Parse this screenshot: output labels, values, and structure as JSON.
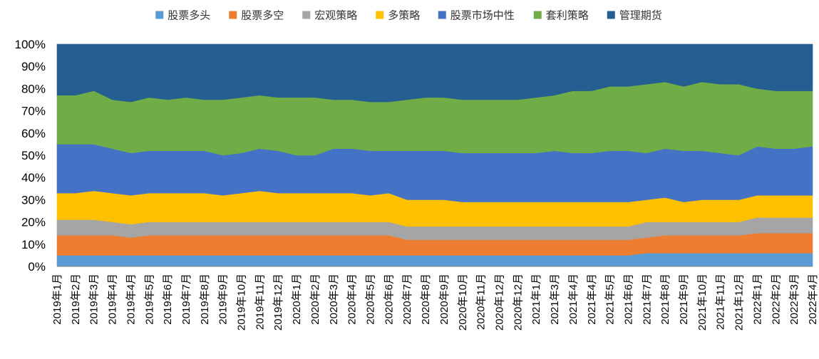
{
  "chart_data": {
    "type": "area",
    "stacked": true,
    "percent": true,
    "title": "",
    "xlabel": "",
    "ylabel": "",
    "ylim": [
      0,
      100
    ],
    "yticks": [
      "0%",
      "10%",
      "20%",
      "30%",
      "40%",
      "50%",
      "60%",
      "70%",
      "80%",
      "90%",
      "100%"
    ],
    "legend_position": "top",
    "categories": [
      "2019年1月",
      "2019年2月",
      "2019年3月",
      "2019年4月",
      "2019年4月",
      "2019年5月",
      "2019年6月",
      "2019年7月",
      "2019年8月",
      "2019年9月",
      "2019年10月",
      "2019年11月",
      "2019年12月",
      "2020年1月",
      "2020年2月",
      "2020年3月",
      "2020年4月",
      "2020年5月",
      "2020年6月",
      "2020年7月",
      "2020年8月",
      "2020年9月",
      "2020年10月",
      "2020年11月",
      "2020年12月",
      "2020年12月",
      "2021年1月",
      "2021年3月",
      "2021年4月",
      "2021年4月",
      "2021年5月",
      "2021年6月",
      "2021年7月",
      "2021年8月",
      "2021年9月",
      "2021年10月",
      "2021年11月",
      "2021年12月",
      "2022年1月",
      "2022年2月",
      "2022年3月",
      "2022年4月"
    ],
    "series": [
      {
        "name": "股票多头",
        "color": "#5B9BD5",
        "values": [
          5,
          5,
          5,
          5,
          5,
          5,
          5,
          5,
          5,
          5,
          5,
          5,
          5,
          5,
          5,
          5,
          5,
          5,
          5,
          5,
          5,
          5,
          5,
          5,
          5,
          5,
          5,
          5,
          5,
          5,
          5,
          5,
          6,
          6,
          6,
          6,
          6,
          6,
          6,
          6,
          6,
          6
        ]
      },
      {
        "name": "股票多空",
        "color": "#ED7D31",
        "values": [
          9,
          9,
          9,
          9,
          8,
          9,
          9,
          9,
          9,
          9,
          9,
          9,
          9,
          9,
          9,
          9,
          9,
          9,
          9,
          7,
          7,
          7,
          7,
          7,
          7,
          7,
          7,
          7,
          7,
          7,
          7,
          7,
          7,
          8,
          8,
          8,
          8,
          8,
          9,
          9,
          9,
          9
        ]
      },
      {
        "name": "宏观策略",
        "color": "#A5A5A5",
        "values": [
          7,
          7,
          7,
          6,
          6,
          6,
          6,
          6,
          6,
          6,
          6,
          6,
          6,
          6,
          6,
          6,
          6,
          6,
          6,
          6,
          6,
          6,
          6,
          6,
          6,
          6,
          6,
          6,
          6,
          6,
          6,
          6,
          7,
          6,
          6,
          6,
          6,
          6,
          7,
          7,
          7,
          7
        ]
      },
      {
        "name": "多策略",
        "color": "#FFC000",
        "values": [
          12,
          12,
          13,
          13,
          13,
          13,
          13,
          13,
          13,
          12,
          13,
          14,
          13,
          13,
          13,
          13,
          13,
          12,
          13,
          12,
          12,
          12,
          11,
          11,
          11,
          11,
          11,
          11,
          11,
          11,
          11,
          11,
          10,
          11,
          9,
          10,
          10,
          10,
          10,
          10,
          10,
          10
        ]
      },
      {
        "name": "股票市场中性",
        "color": "#4472C4",
        "values": [
          22,
          22,
          21,
          20,
          19,
          19,
          19,
          19,
          19,
          18,
          18,
          19,
          19,
          17,
          17,
          20,
          20,
          20,
          19,
          22,
          22,
          22,
          22,
          22,
          22,
          22,
          22,
          23,
          22,
          22,
          23,
          23,
          21,
          22,
          23,
          22,
          21,
          20,
          22,
          21,
          21,
          22
        ]
      },
      {
        "name": "套利策略",
        "color": "#70AD47",
        "values": [
          22,
          22,
          24,
          22,
          23,
          24,
          23,
          24,
          23,
          25,
          25,
          24,
          24,
          26,
          26,
          22,
          22,
          22,
          22,
          23,
          24,
          24,
          24,
          24,
          24,
          24,
          25,
          25,
          28,
          28,
          29,
          29,
          31,
          30,
          29,
          31,
          31,
          32,
          26,
          26,
          26,
          25
        ]
      },
      {
        "name": "管理期货",
        "color": "#255E91",
        "values": [
          23,
          23,
          21,
          25,
          26,
          24,
          25,
          24,
          25,
          25,
          24,
          23,
          24,
          24,
          24,
          25,
          25,
          26,
          26,
          25,
          24,
          24,
          25,
          25,
          25,
          25,
          24,
          23,
          21,
          21,
          19,
          19,
          18,
          17,
          19,
          17,
          18,
          18,
          20,
          21,
          21,
          21
        ]
      }
    ]
  }
}
